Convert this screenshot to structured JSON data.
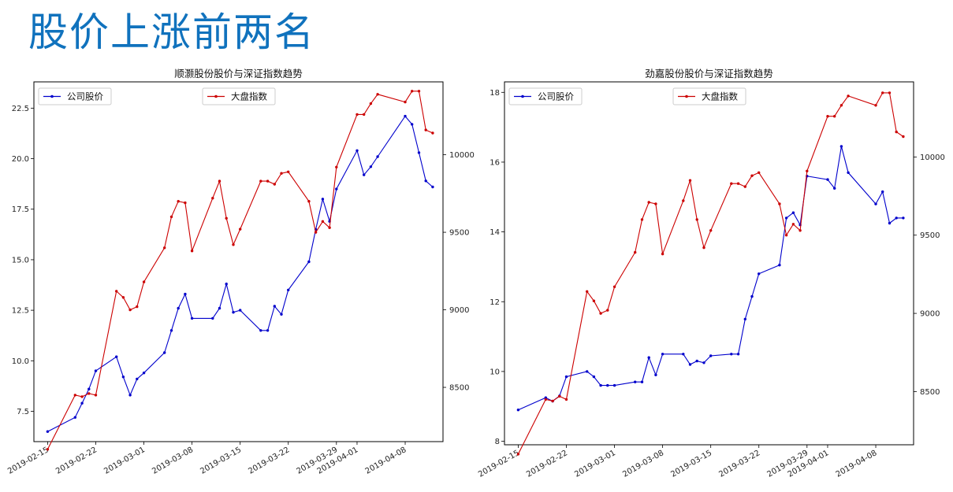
{
  "slide": {
    "title": "股价上涨前两名"
  },
  "chart_data": [
    {
      "type": "line",
      "title": "顺灏股份股价与深证指数趋势",
      "x": [
        "2019-02-15",
        "2019-02-19",
        "2019-02-20",
        "2019-02-21",
        "2019-02-22",
        "2019-02-25",
        "2019-02-26",
        "2019-02-27",
        "2019-02-28",
        "2019-03-01",
        "2019-03-04",
        "2019-03-05",
        "2019-03-06",
        "2019-03-07",
        "2019-03-08",
        "2019-03-11",
        "2019-03-12",
        "2019-03-13",
        "2019-03-14",
        "2019-03-15",
        "2019-03-18",
        "2019-03-19",
        "2019-03-20",
        "2019-03-21",
        "2019-03-22",
        "2019-03-25",
        "2019-03-26",
        "2019-03-27",
        "2019-03-28",
        "2019-03-29",
        "2019-04-01",
        "2019-04-02",
        "2019-04-03",
        "2019-04-04",
        "2019-04-08",
        "2019-04-09",
        "2019-04-10",
        "2019-04-11",
        "2019-04-12"
      ],
      "series": [
        {
          "name": "公司股价",
          "axis": "left",
          "color": "#0000cc",
          "values": [
            6.5,
            7.2,
            7.9,
            8.6,
            9.5,
            10.2,
            9.2,
            8.3,
            9.1,
            9.4,
            10.4,
            11.5,
            12.6,
            13.3,
            12.1,
            12.1,
            12.6,
            13.8,
            12.4,
            12.5,
            11.5,
            11.5,
            12.7,
            12.3,
            13.5,
            14.9,
            16.5,
            18.0,
            16.9,
            18.5,
            20.4,
            19.2,
            19.6,
            20.1,
            22.1,
            21.7,
            20.3,
            18.9,
            18.6
          ]
        },
        {
          "name": "大盘指数",
          "axis": "right",
          "color": "#cc0000",
          "values": [
            8100,
            8450,
            8440,
            8460,
            8450,
            9120,
            9080,
            9000,
            9020,
            9180,
            9400,
            9600,
            9700,
            9690,
            9380,
            9720,
            9830,
            9590,
            9420,
            9520,
            9830,
            9830,
            9810,
            9880,
            9890,
            9700,
            9500,
            9570,
            9530,
            9920,
            10260,
            10260,
            10330,
            10390,
            10340,
            10410,
            10410,
            10160,
            10140
          ]
        }
      ],
      "yaxis_left": {
        "range": [
          6.0,
          23.8
        ],
        "ticks": [
          "7.5",
          "10.0",
          "12.5",
          "15.0",
          "17.5",
          "20.0",
          "22.5"
        ]
      },
      "yaxis_right": {
        "range": [
          8150,
          10470
        ],
        "ticks": [
          "8500",
          "9000",
          "9500",
          "10000"
        ]
      },
      "xticks": [
        "2019-02-15",
        "2019-02-22",
        "2019-03-01",
        "2019-03-08",
        "2019-03-15",
        "2019-03-22",
        "2019-03-29",
        "2019-04-01",
        "2019-04-08"
      ],
      "legend_left": "top-left",
      "legend_right": "top-center",
      "grid": false
    },
    {
      "type": "line",
      "title": "劲嘉股份股价与深证指数趋势",
      "x": [
        "2019-02-15",
        "2019-02-19",
        "2019-02-20",
        "2019-02-21",
        "2019-02-22",
        "2019-02-25",
        "2019-02-26",
        "2019-02-27",
        "2019-02-28",
        "2019-03-01",
        "2019-03-04",
        "2019-03-05",
        "2019-03-06",
        "2019-03-07",
        "2019-03-08",
        "2019-03-11",
        "2019-03-12",
        "2019-03-13",
        "2019-03-14",
        "2019-03-15",
        "2019-03-18",
        "2019-03-19",
        "2019-03-20",
        "2019-03-21",
        "2019-03-22",
        "2019-03-25",
        "2019-03-26",
        "2019-03-27",
        "2019-03-28",
        "2019-03-29",
        "2019-04-01",
        "2019-04-02",
        "2019-04-03",
        "2019-04-04",
        "2019-04-08",
        "2019-04-09",
        "2019-04-10",
        "2019-04-11",
        "2019-04-12"
      ],
      "series": [
        {
          "name": "公司股价",
          "axis": "left",
          "color": "#0000cc",
          "values": [
            8.9,
            9.25,
            9.15,
            9.3,
            9.85,
            10.0,
            9.85,
            9.6,
            9.6,
            9.6,
            9.7,
            9.7,
            10.4,
            9.9,
            10.5,
            10.5,
            10.2,
            10.3,
            10.25,
            10.45,
            10.5,
            10.5,
            11.5,
            12.15,
            12.8,
            13.05,
            14.4,
            14.55,
            14.2,
            15.6,
            15.5,
            15.25,
            16.45,
            15.7,
            14.8,
            15.15,
            14.25,
            14.4,
            14.4
          ]
        },
        {
          "name": "大盘指数",
          "axis": "right",
          "color": "#cc0000",
          "values": [
            8100,
            8450,
            8440,
            8470,
            8450,
            9140,
            9080,
            9000,
            9020,
            9170,
            9390,
            9600,
            9710,
            9700,
            9380,
            9720,
            9850,
            9600,
            9420,
            9530,
            9830,
            9830,
            9810,
            9880,
            9900,
            9700,
            9500,
            9570,
            9530,
            9910,
            10260,
            10260,
            10330,
            10390,
            10330,
            10410,
            10410,
            10160,
            10130
          ]
        }
      ],
      "yaxis_left": {
        "range": [
          7.9,
          18.3
        ],
        "ticks": [
          "8",
          "10",
          "12",
          "14",
          "16",
          "18"
        ]
      },
      "yaxis_right": {
        "range": [
          8160,
          10480
        ],
        "ticks": [
          "8500",
          "9000",
          "9500",
          "10000"
        ]
      },
      "xticks": [
        "2019-02-15",
        "2019-02-22",
        "2019-03-01",
        "2019-03-08",
        "2019-03-15",
        "2019-03-22",
        "2019-03-29",
        "2019-04-01",
        "2019-04-08"
      ],
      "legend_left": "top-left",
      "legend_right": "top-center",
      "grid": false
    }
  ]
}
